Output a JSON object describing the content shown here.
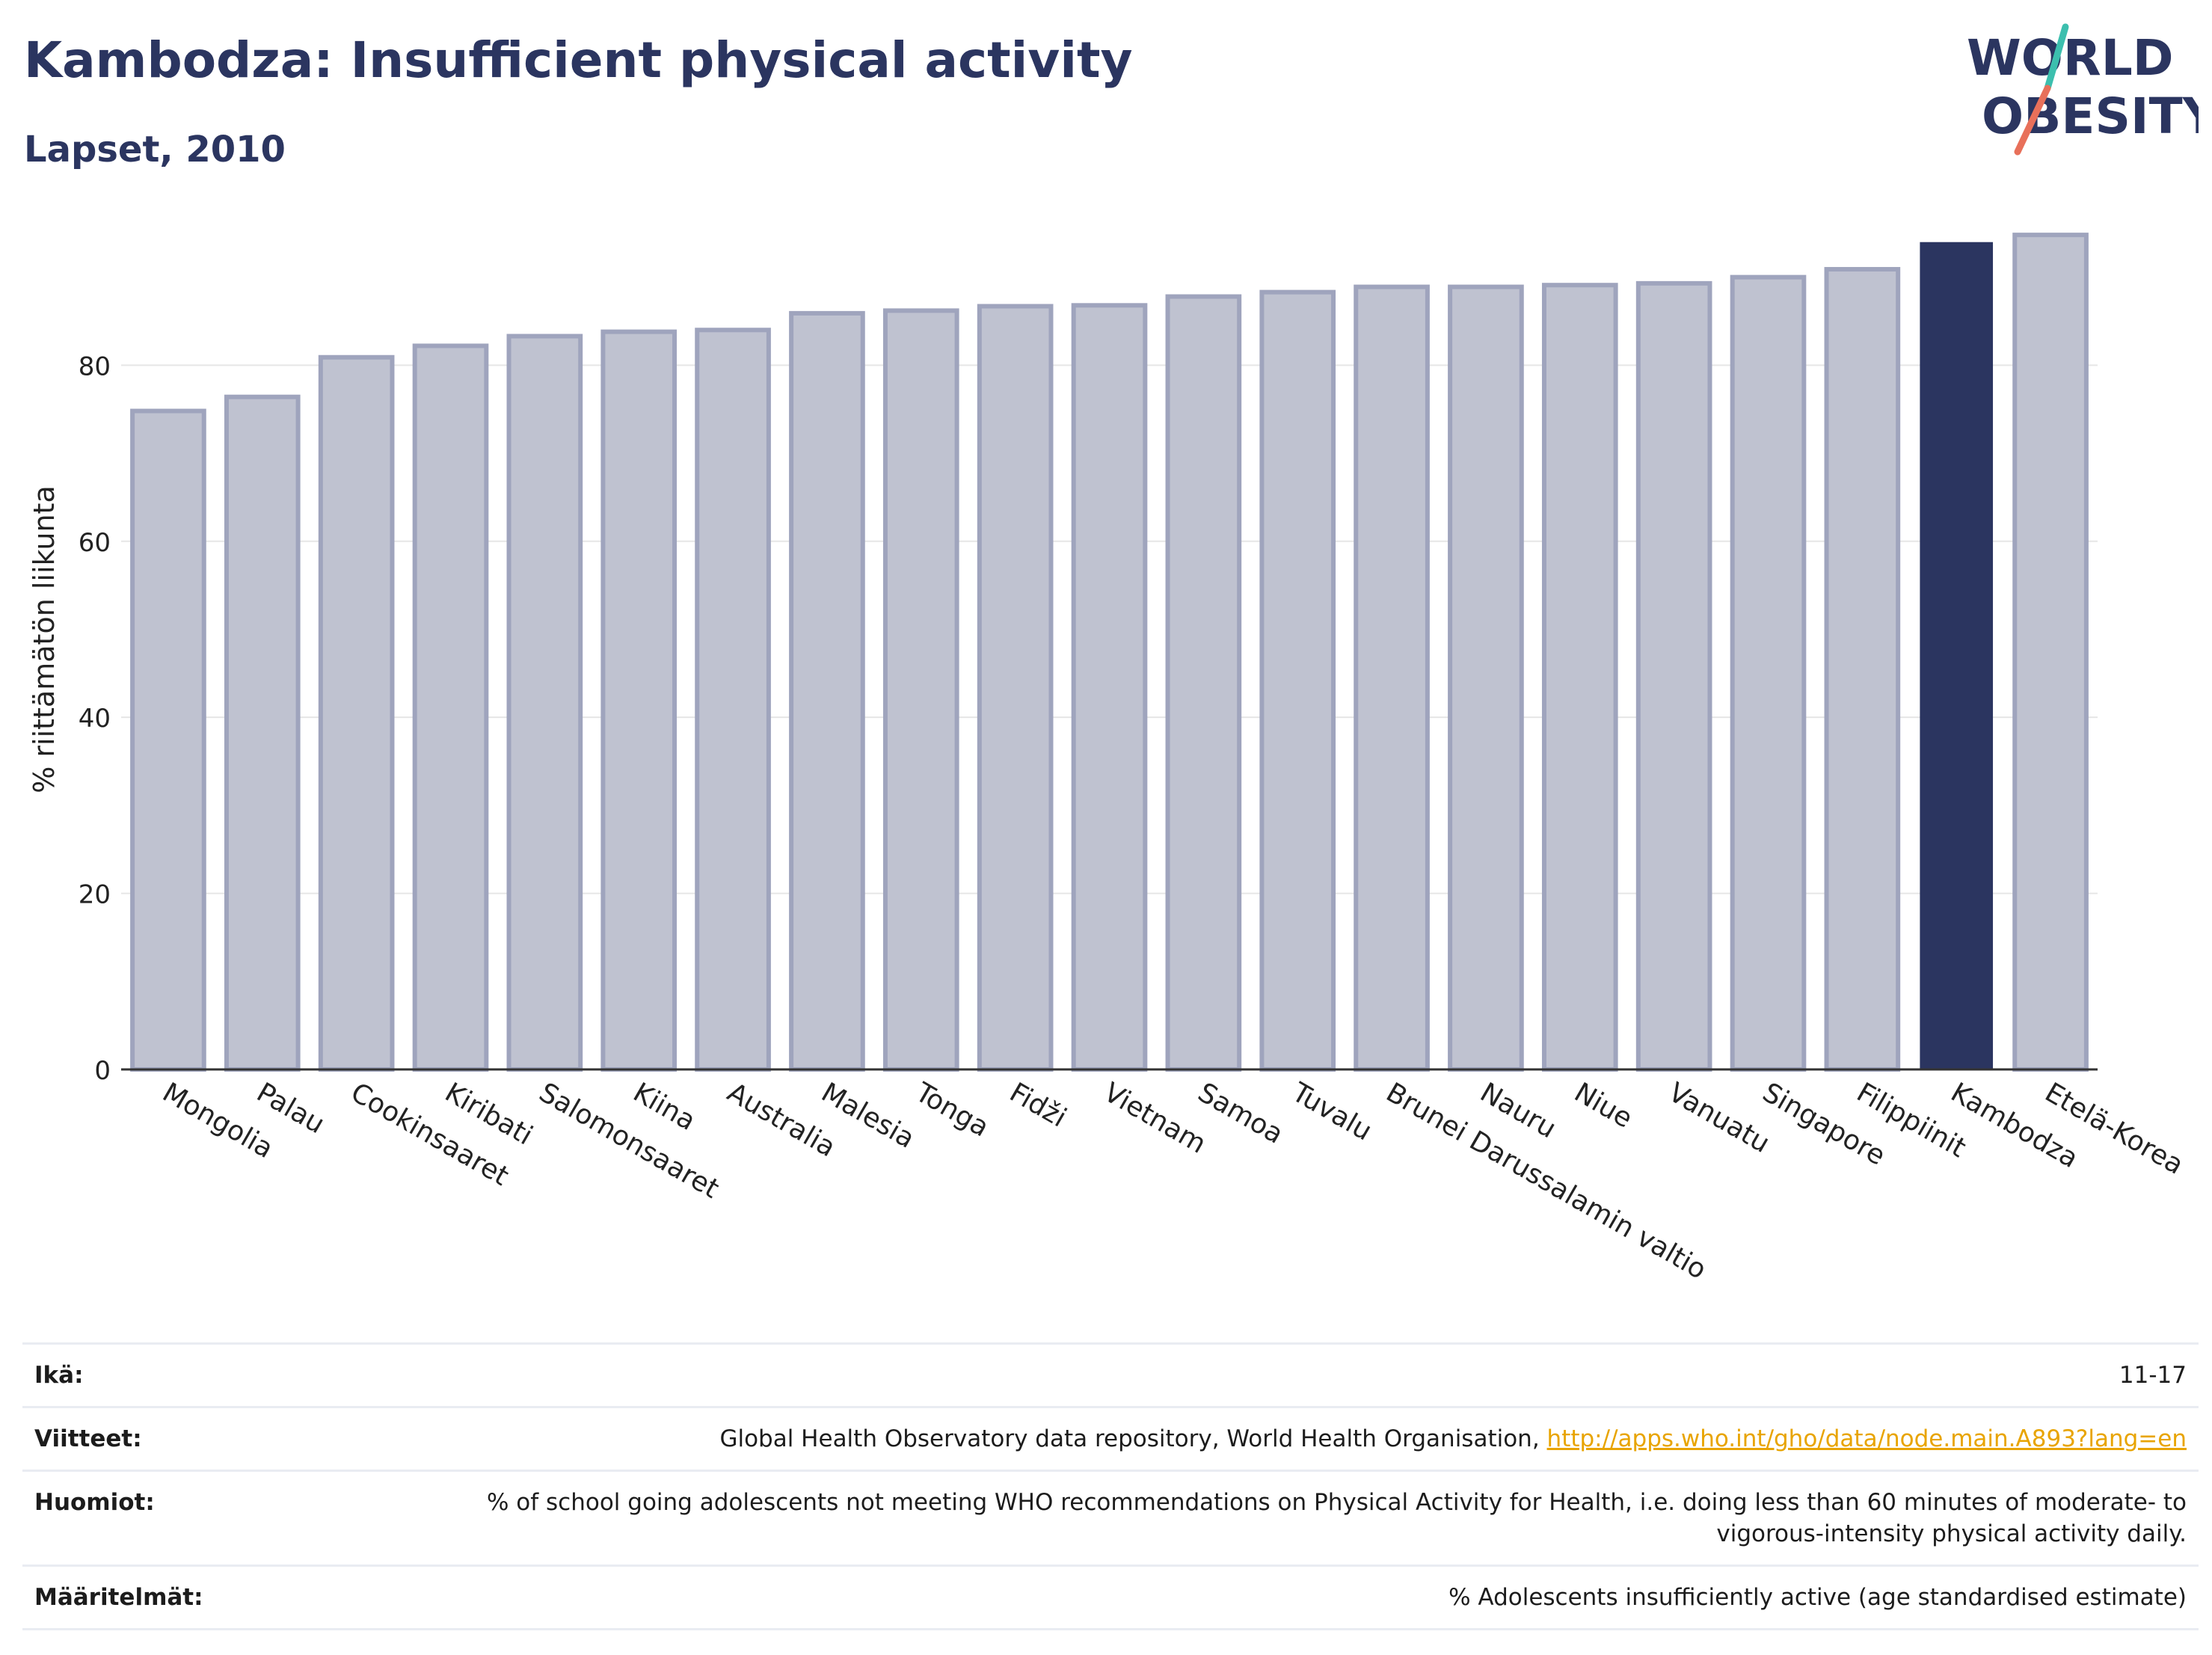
{
  "header": {
    "title": "Kambodza: Insufficient physical activity",
    "subtitle": "Lapset, 2010"
  },
  "logo": {
    "line1": "WORLD",
    "line2": "OBESITY",
    "colors": {
      "text": "#2b3560",
      "stroke_teal": "#3cbfae",
      "stroke_coral": "#e8705a"
    }
  },
  "colors": {
    "bar_default": "#bfc2d0",
    "bar_default_edge": "#9fa4bd",
    "bar_highlight": "#2b3560",
    "axis": "#333333",
    "grid": "#e6e6e6"
  },
  "chart_data": {
    "type": "bar",
    "title": "",
    "xlabel": "",
    "ylabel": "% riittämätön liikunta",
    "ylim": [
      0,
      96
    ],
    "yticks": [
      0,
      20,
      40,
      60,
      80
    ],
    "grid": true,
    "highlight": "Kambodza",
    "categories": [
      "Mongolia",
      "Palau",
      "Cookinsaaret",
      "Kiribati",
      "Salomonsaaret",
      "Kiina",
      "Australia",
      "Malesia",
      "Tonga",
      "Fidži",
      "Vietnam",
      "Samoa",
      "Tuvalu",
      "Brunei Darussalamin valtio",
      "Nauru",
      "Niue",
      "Vanuatu",
      "Singapore",
      "Filippiinit",
      "Kambodza",
      "Etelä-Korea"
    ],
    "values": [
      74.8,
      76.4,
      80.9,
      82.2,
      83.3,
      83.8,
      84.0,
      85.9,
      86.2,
      86.7,
      86.8,
      87.8,
      88.3,
      88.9,
      88.9,
      89.1,
      89.3,
      90.0,
      90.9,
      93.9,
      94.8
    ]
  },
  "footer": {
    "rows": [
      {
        "label": "Ikä:",
        "value": "11-17"
      },
      {
        "label": "Viitteet:",
        "value": "Global Health Observatory data repository, World Health Organisation, ",
        "link": "http://apps.who.int/gho/data/node.main.A893?lang=en"
      },
      {
        "label": "Huomiot:",
        "value": "% of school going adolescents not meeting WHO recommendations on Physical Activity for Health, i.e. doing less than 60 minutes of moderate- to vigorous-intensity physical activity daily."
      },
      {
        "label": "Määritelmät:",
        "value": "% Adolescents insufficiently active (age standardised estimate)"
      }
    ]
  }
}
